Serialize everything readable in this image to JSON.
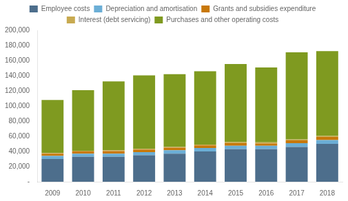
{
  "chart_data": {
    "type": "bar",
    "stacked": true,
    "grid": false,
    "legend": "top",
    "categories": [
      "2009",
      "2010",
      "2011",
      "2012",
      "2013",
      "2014",
      "2015",
      "2016",
      "2017",
      "2018"
    ],
    "series": [
      {
        "name": "Employee costs",
        "color": "#4d6e8c",
        "values": [
          30000,
          33000,
          33000,
          35000,
          37000,
          40000,
          43000,
          43000,
          46000,
          50000
        ]
      },
      {
        "name": "Depreciation and amortisation",
        "color": "#6baed6",
        "values": [
          4000,
          4000,
          4000,
          4000,
          4500,
          4500,
          4500,
          4500,
          5000,
          5000
        ]
      },
      {
        "name": "Grants and subsidies expenditure",
        "color": "#c8780a",
        "values": [
          3000,
          3000,
          3500,
          3500,
          3500,
          3500,
          3500,
          3000,
          3500,
          4000
        ]
      },
      {
        "name": "Interest (debt servicing)",
        "color": "#c8aa50",
        "values": [
          1000,
          1000,
          1000,
          1000,
          1000,
          1000,
          1500,
          1500,
          1500,
          1500
        ]
      },
      {
        "name": "Purchases and other operating costs",
        "color": "#7f9a20",
        "values": [
          70000,
          80000,
          91000,
          97000,
          96000,
          97000,
          103000,
          99000,
          115000,
          112000
        ]
      }
    ],
    "ylim": [
      0,
      200000
    ],
    "yticks": [
      {
        "value": 0,
        "label": "-"
      },
      {
        "value": 20000,
        "label": "20,000"
      },
      {
        "value": 40000,
        "label": "40,000"
      },
      {
        "value": 60000,
        "label": "60,000"
      },
      {
        "value": 80000,
        "label": "80,000"
      },
      {
        "value": 100000,
        "label": "100,000"
      },
      {
        "value": 120000,
        "label": "120,000"
      },
      {
        "value": 140000,
        "label": "140,000"
      },
      {
        "value": 160000,
        "label": "160,000"
      },
      {
        "value": 180000,
        "label": "180,000"
      },
      {
        "value": 200000,
        "label": "200,000"
      }
    ]
  }
}
